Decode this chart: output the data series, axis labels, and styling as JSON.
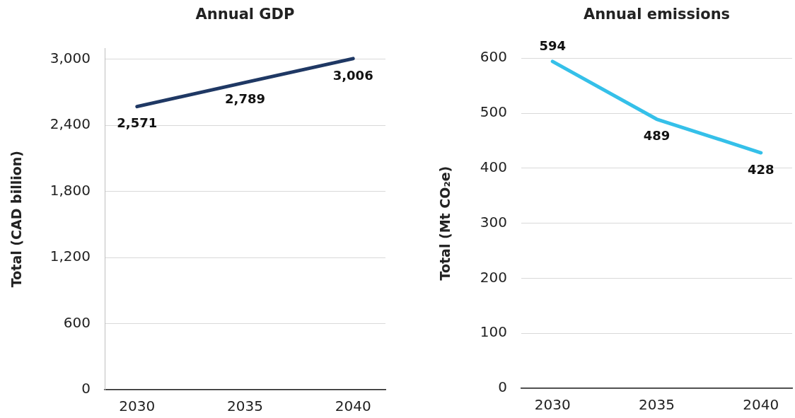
{
  "chart_data": [
    {
      "type": "line",
      "title": "Annual GDP",
      "ylabel": "Total (CAD billion)",
      "categories": [
        "2030",
        "2035",
        "2040"
      ],
      "values": [
        2571,
        2789,
        3006
      ],
      "color": "#1f3864",
      "value_labels": [
        "2,571",
        "2,789",
        "3,006"
      ],
      "ylim": [
        0,
        3100
      ],
      "yticks": [
        0,
        600,
        {
          "value": 1200,
          "label": "1,200"
        },
        {
          "value": 1800,
          "label": "1,800"
        },
        {
          "value": 2400,
          "label": "2,400"
        },
        {
          "value": 3000,
          "label": "3,000"
        }
      ],
      "grid": "y",
      "line_style": "solid"
    },
    {
      "type": "line",
      "title": "Annual emissions",
      "ylabel": "Total (Mt CO₂e)",
      "categories": [
        "2030",
        "2035",
        "2040"
      ],
      "values": [
        594,
        489,
        428
      ],
      "color": "#35c0e9",
      "data_labels": true,
      "ylim": [
        0,
        600
      ],
      "yticks": [
        0,
        100,
        200,
        300,
        400,
        500,
        600
      ],
      "grid": "y",
      "line_style": "solid"
    }
  ]
}
